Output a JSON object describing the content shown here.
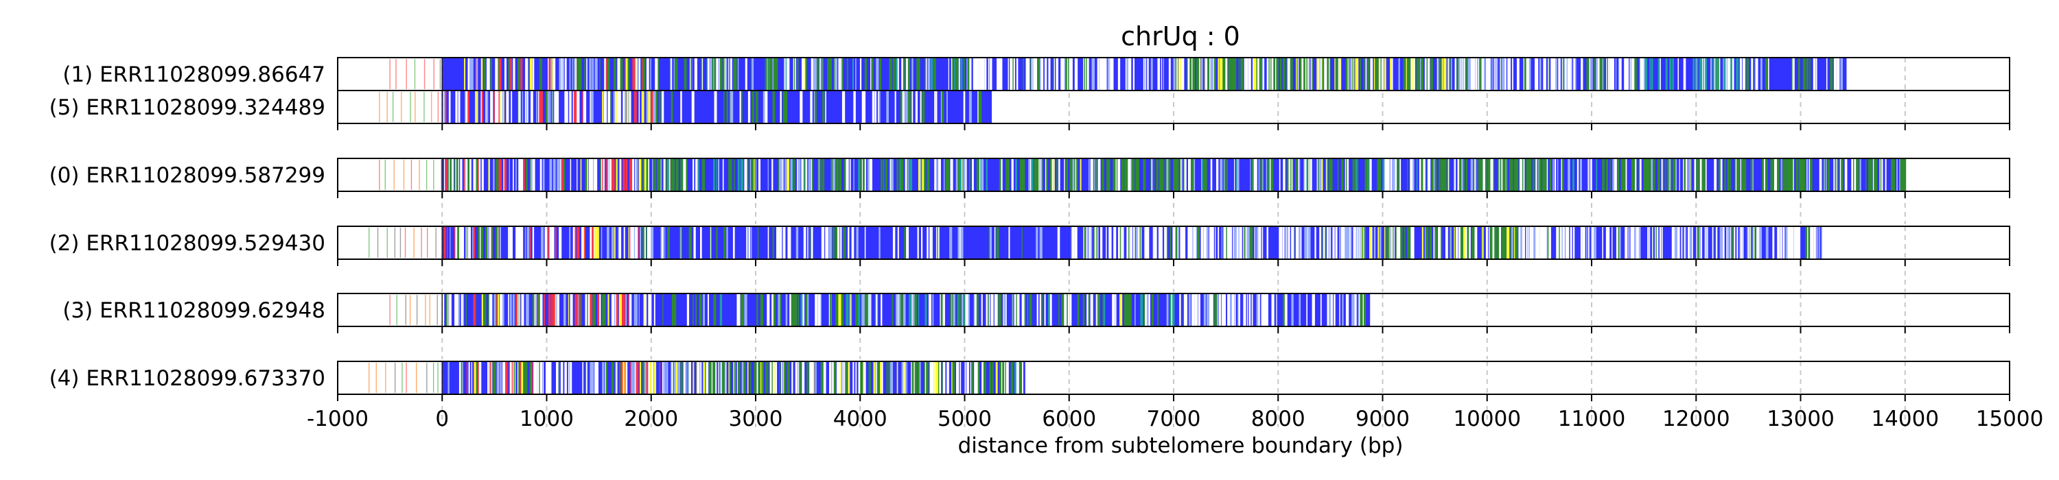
{
  "chart_data": {
    "type": "track_plot",
    "title": "chrUq : 0",
    "xlabel": "distance from subtelomere boundary (bp)",
    "xlim": [
      -1000,
      15000
    ],
    "x_ticks": [
      -1000,
      0,
      1000,
      2000,
      3000,
      4000,
      5000,
      6000,
      7000,
      8000,
      9000,
      10000,
      11000,
      12000,
      13000,
      14000,
      15000
    ],
    "x_tick_labels": [
      "-1000",
      "0",
      "1000",
      "2000",
      "3000",
      "4000",
      "5000",
      "6000",
      "7000",
      "8000",
      "9000",
      "10000",
      "11000",
      "12000",
      "13000",
      "14000",
      "15000"
    ],
    "grid": "vertical dashed at ticks",
    "colors": {
      "repeat_fill": "#3333ff",
      "white_gap": "#ffffff",
      "green": "#2e8b2e",
      "yellow": "#ffff33",
      "red": "#ff3344",
      "teal": "#20a0a0",
      "light_blue": "#9ab0ff",
      "subtelomere_marks": [
        "#66bb66",
        "#ff9944",
        "#ff6666",
        "#888888"
      ]
    },
    "groups": [
      {
        "reads": [
          {
            "label": "(1) ERR11028099.86647",
            "end": 13440,
            "pre_start": -500,
            "zones": [
              {
                "from": 200,
                "to": 2000,
                "pal": "red"
              },
              {
                "from": 2000,
                "to": 5000,
                "pal": "mix"
              },
              {
                "from": 5000,
                "to": 7000,
                "pal": "white"
              },
              {
                "from": 7000,
                "to": 9600,
                "pal": "yellowgreen"
              },
              {
                "from": 9600,
                "to": 11500,
                "pal": "white"
              },
              {
                "from": 11500,
                "to": 12400,
                "pal": "teal"
              },
              {
                "from": 12400,
                "to": 13440,
                "pal": "sparse"
              }
            ]
          },
          {
            "label": "(5) ERR11028099.324489",
            "end": 5260,
            "pre_start": -600,
            "zones": [
              {
                "from": 0,
                "to": 2000,
                "pal": "red"
              },
              {
                "from": 2000,
                "to": 5260,
                "pal": "sparse"
              }
            ]
          }
        ]
      },
      {
        "reads": [
          {
            "label": "(0) ERR11028099.587299",
            "end": 14000,
            "pre_start": -600,
            "zones": [
              {
                "from": 0,
                "to": 2000,
                "pal": "red"
              },
              {
                "from": 2000,
                "to": 6400,
                "pal": "mix"
              },
              {
                "from": 6400,
                "to": 7200,
                "pal": "green"
              },
              {
                "from": 7200,
                "to": 9500,
                "pal": "mix"
              },
              {
                "from": 9500,
                "to": 10600,
                "pal": "green"
              },
              {
                "from": 10600,
                "to": 11100,
                "pal": "mix"
              },
              {
                "from": 11100,
                "to": 14000,
                "pal": "green"
              }
            ]
          }
        ]
      },
      {
        "reads": [
          {
            "label": "(2) ERR11028099.529430",
            "end": 13200,
            "pre_start": -700,
            "zones": [
              {
                "from": 0,
                "to": 2000,
                "pal": "red"
              },
              {
                "from": 2000,
                "to": 6000,
                "pal": "sparse"
              },
              {
                "from": 6000,
                "to": 8800,
                "pal": "white"
              },
              {
                "from": 8800,
                "to": 10300,
                "pal": "yellowgreen"
              },
              {
                "from": 10300,
                "to": 13200,
                "pal": "white"
              }
            ]
          }
        ]
      },
      {
        "reads": [
          {
            "label": "(3) ERR11028099.62948",
            "end": 8880,
            "pre_start": -500,
            "zones": [
              {
                "from": 0,
                "to": 2000,
                "pal": "red"
              },
              {
                "from": 2000,
                "to": 7000,
                "pal": "mix"
              },
              {
                "from": 7000,
                "to": 8000,
                "pal": "white"
              },
              {
                "from": 8000,
                "to": 8880,
                "pal": "sparse"
              }
            ]
          }
        ]
      },
      {
        "reads": [
          {
            "label": "(4) ERR11028099.673370",
            "end": 5580,
            "pre_start": -700,
            "zones": [
              {
                "from": 0,
                "to": 2200,
                "pal": "red"
              },
              {
                "from": 2200,
                "to": 5000,
                "pal": "yellowgreen"
              },
              {
                "from": 5000,
                "to": 5580,
                "pal": "mix"
              }
            ]
          }
        ]
      }
    ]
  }
}
